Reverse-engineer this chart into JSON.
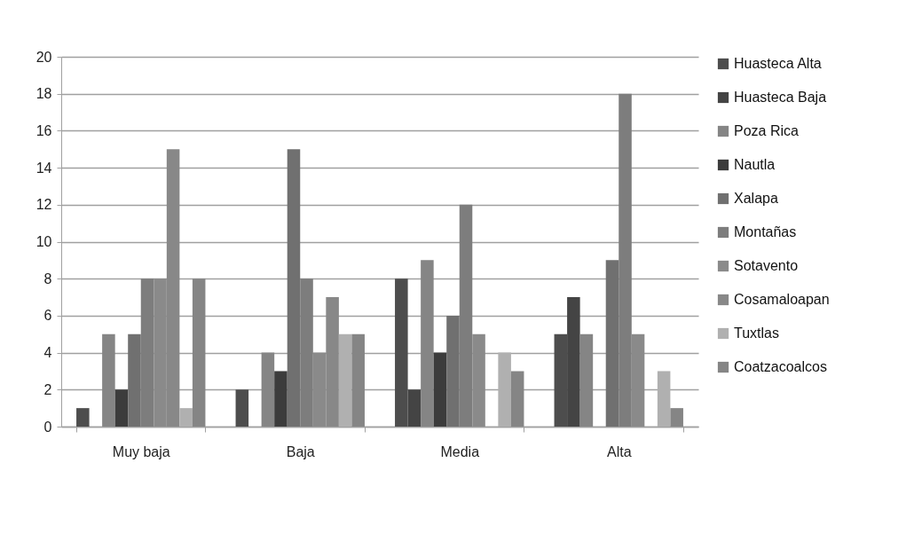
{
  "chart_data": {
    "type": "bar",
    "categories": [
      "Muy baja",
      "Baja",
      "Media",
      "Alta"
    ],
    "series": [
      {
        "name": "Huasteca Alta",
        "color": "#4d4d4d",
        "values": [
          1,
          2,
          8,
          5
        ]
      },
      {
        "name": "Huasteca Baja",
        "color": "#444444",
        "values": [
          0,
          0,
          2,
          7
        ]
      },
      {
        "name": "Poza Rica",
        "color": "#858585",
        "values": [
          5,
          4,
          9,
          5
        ]
      },
      {
        "name": "Nautla",
        "color": "#3c3c3c",
        "values": [
          2,
          3,
          4,
          0
        ]
      },
      {
        "name": "Xalapa",
        "color": "#707070",
        "values": [
          5,
          15,
          6,
          9
        ]
      },
      {
        "name": "Montañas",
        "color": "#7d7d7d",
        "values": [
          8,
          8,
          12,
          18
        ]
      },
      {
        "name": "Sotavento",
        "color": "#8a8a8a",
        "values": [
          8,
          4,
          5,
          5
        ]
      },
      {
        "name": "Cosamaloapan",
        "color": "#888888",
        "values": [
          15,
          7,
          0,
          0
        ]
      },
      {
        "name": "Tuxtlas",
        "color": "#b0b0b0",
        "values": [
          1,
          5,
          4,
          3
        ]
      },
      {
        "name": "Coatzacoalcos",
        "color": "#858585",
        "values": [
          8,
          5,
          3,
          1
        ]
      }
    ],
    "ylim": [
      0,
      20
    ],
    "yticks": [
      0,
      2,
      4,
      6,
      8,
      10,
      12,
      14,
      16,
      18,
      20
    ],
    "grid": "y",
    "legend": "right"
  }
}
